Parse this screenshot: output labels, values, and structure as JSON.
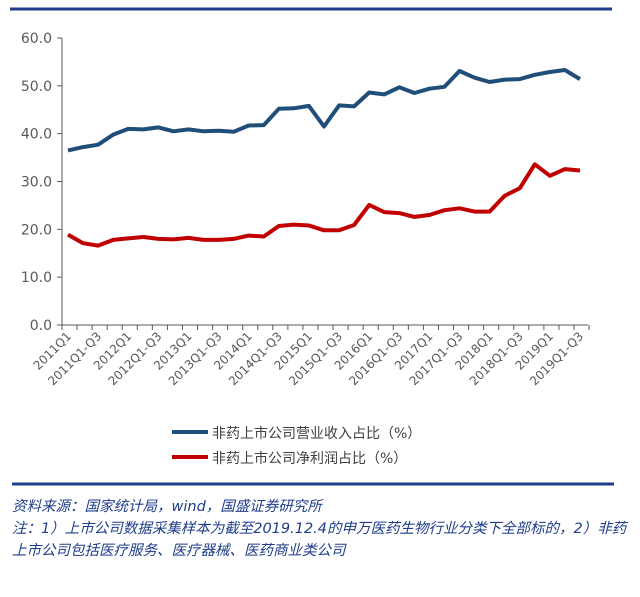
{
  "chart_data": {
    "type": "line",
    "title": "",
    "xlabel": "",
    "ylabel": "",
    "ylim": [
      0,
      60
    ],
    "y_ticks": [
      "0.0",
      "10.0",
      "20.0",
      "30.0",
      "40.0",
      "50.0",
      "60.0"
    ],
    "x_tick_labels": [
      "2011Q1",
      "2011Q1-Q3",
      "2012Q1",
      "2012Q1-Q3",
      "2013Q1",
      "2013Q1-Q3",
      "2014Q1",
      "2014Q1-Q3",
      "2015Q1",
      "2015Q1-Q3",
      "2016Q1",
      "2016Q1-Q3",
      "2017Q1",
      "2017Q1-Q3",
      "2018Q1",
      "2018Q1-Q3",
      "2019Q1",
      "2019Q1-Q3"
    ],
    "grid": false,
    "legend_position": "bottom",
    "series": [
      {
        "name": "非药上市公司营业收入占比（%）",
        "color": "#1f4e79",
        "values": [
          36.5,
          37.2,
          37.7,
          39.8,
          41.0,
          40.9,
          41.3,
          40.5,
          40.9,
          40.5,
          40.6,
          40.4,
          41.7,
          41.8,
          45.2,
          45.3,
          45.8,
          41.5,
          45.9,
          45.7,
          48.6,
          48.2,
          49.7,
          48.5,
          49.4,
          49.8,
          53.1,
          51.7,
          50.8,
          51.3,
          51.4,
          52.3,
          52.9,
          53.3,
          51.4
        ]
      },
      {
        "name": "非药上市公司净利润占比（%）",
        "color": "#c00000",
        "values": [
          18.9,
          17.1,
          16.6,
          17.8,
          18.1,
          18.4,
          18.0,
          17.9,
          18.2,
          17.8,
          17.8,
          18.0,
          18.7,
          18.5,
          20.7,
          21.0,
          20.8,
          19.8,
          19.8,
          20.9,
          25.1,
          23.6,
          23.4,
          22.6,
          23.0,
          24.0,
          24.4,
          23.7,
          23.7,
          27.0,
          28.6,
          33.6,
          31.2,
          32.6,
          32.3
        ]
      }
    ]
  },
  "colors": {
    "rule": "#1f3d8a",
    "axis_text": "#595959",
    "footer_text": "#1f3d8a"
  },
  "footer": {
    "source": "资料来源：国家统计局，wind，国盛证券研究所",
    "note": "注：1）上市公司数据采集样本为截至2019.12.4的申万医药生物行业分类下全部标的，2）非药上市公司包括医疗服务、医疗器械、医药商业类公司"
  }
}
